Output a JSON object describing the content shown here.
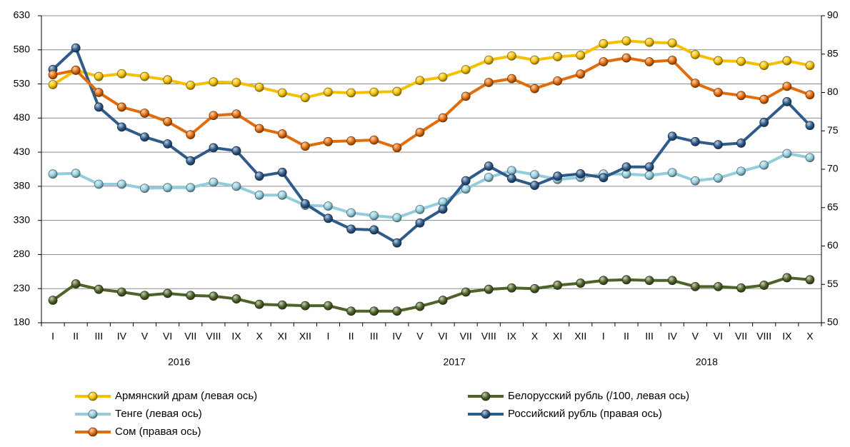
{
  "chart_data": {
    "type": "line",
    "categories": [
      "I",
      "II",
      "III",
      "IV",
      "V",
      "VI",
      "VII",
      "VIII",
      "IX",
      "X",
      "XI",
      "XII",
      "I",
      "II",
      "III",
      "IV",
      "V",
      "VI",
      "VII",
      "VIII",
      "IX",
      "X",
      "XI",
      "XII",
      "I",
      "II",
      "III",
      "IV",
      "V",
      "VI",
      "VII",
      "VIII",
      "IX",
      "X"
    ],
    "x_groups": [
      {
        "name": "2016",
        "count": 12
      },
      {
        "name": "2017",
        "count": 12
      },
      {
        "name": "2018",
        "count": 10
      }
    ],
    "ylim": [
      180,
      630
    ],
    "yticks": [
      180,
      230,
      280,
      330,
      380,
      430,
      480,
      530,
      580,
      630
    ],
    "y2lim": [
      50,
      90
    ],
    "y2ticks": [
      50,
      55,
      60,
      65,
      70,
      75,
      80,
      85,
      90
    ],
    "grid": true,
    "series": [
      {
        "name": "Армянский драм (левая ось)",
        "color": "#f5c000",
        "axis": "y",
        "values": [
          529,
          550,
          541,
          545,
          541,
          536,
          528,
          533,
          532,
          525,
          517,
          510,
          518,
          517,
          518,
          519,
          535,
          540,
          551,
          565,
          571,
          565,
          570,
          572,
          589,
          593,
          591,
          590,
          573,
          564,
          563,
          557,
          564,
          557
        ]
      },
      {
        "name": "Белорусский рубль (/100, левая ось)",
        "color": "#4f6228",
        "axis": "y",
        "values": [
          213,
          237,
          229,
          225,
          220,
          223,
          220,
          219,
          215,
          207,
          206,
          205,
          205,
          197,
          197,
          197,
          204,
          213,
          225,
          229,
          231,
          230,
          235,
          238,
          242,
          243,
          242,
          242,
          233,
          233,
          231,
          235,
          246,
          243
        ]
      },
      {
        "name": "Тенге (левая ось)",
        "color": "#93cddd",
        "axis": "y",
        "values": [
          398,
          399,
          383,
          383,
          377,
          378,
          378,
          386,
          380,
          367,
          367,
          352,
          351,
          341,
          337,
          334,
          346,
          357,
          376,
          393,
          403,
          397,
          390,
          393,
          398,
          398,
          396,
          400,
          388,
          392,
          402,
          411,
          428,
          422
        ]
      },
      {
        "name": "Российский рубль (правая ось)",
        "color": "#2e5b8a",
        "axis": "y2",
        "values": [
          83.0,
          85.8,
          78.1,
          75.5,
          74.2,
          73.3,
          71.1,
          72.8,
          72.4,
          69.1,
          69.6,
          65.5,
          63.6,
          62.2,
          62.1,
          60.4,
          63.0,
          64.8,
          68.5,
          70.4,
          68.8,
          67.9,
          69.1,
          69.4,
          68.9,
          70.3,
          70.3,
          74.3,
          73.6,
          73.2,
          73.4,
          76.1,
          78.8,
          75.7
        ]
      },
      {
        "name": "Сом (правая ось)",
        "color": "#e36c0a",
        "axis": "y2",
        "values": [
          82.3,
          82.9,
          80.0,
          78.1,
          77.3,
          76.2,
          74.5,
          77.0,
          77.2,
          75.3,
          74.6,
          73.0,
          73.6,
          73.7,
          73.8,
          72.8,
          74.8,
          76.7,
          79.5,
          81.3,
          81.8,
          80.5,
          81.5,
          82.4,
          84.0,
          84.5,
          84.0,
          84.2,
          81.2,
          80.0,
          79.6,
          79.1,
          80.8,
          79.7
        ]
      }
    ]
  }
}
